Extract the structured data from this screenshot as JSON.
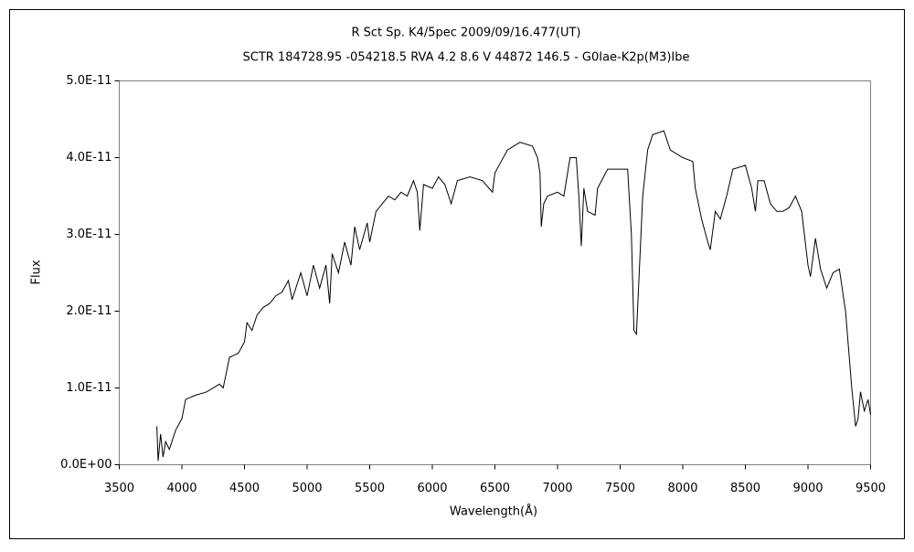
{
  "chart_data": {
    "type": "line",
    "title": "R Sct    Sp. K4/5pec    2009/09/16.477(UT)",
    "subtitle": "SCTR 184728.95 -054218.5 RVA 4.2 8.6 V 44872 146.5 - G0Iae-K2p(M3)Ibe",
    "xlabel": "Wavelength(Å)",
    "ylabel": "Flux",
    "color": "#000000",
    "xlim": [
      3500,
      9500
    ],
    "xticks": [
      3500,
      4000,
      4500,
      5000,
      5500,
      6000,
      6500,
      7000,
      7500,
      8000,
      8500,
      9000,
      9500
    ],
    "ylim": [
      0,
      5e-11
    ],
    "yticks": [
      {
        "value": 0,
        "label": "0.0E+00"
      },
      {
        "value": 1e-11,
        "label": "1.0E-11"
      },
      {
        "value": 2e-11,
        "label": "2.0E-11"
      },
      {
        "value": 3e-11,
        "label": "3.0E-11"
      },
      {
        "value": 4e-11,
        "label": "4.0E-11"
      },
      {
        "value": 5e-11,
        "label": "5.0E-11"
      }
    ],
    "x": [
      3800,
      3810,
      3830,
      3850,
      3870,
      3900,
      3950,
      4000,
      4030,
      4100,
      4200,
      4300,
      4330,
      4380,
      4450,
      4500,
      4520,
      4560,
      4600,
      4650,
      4700,
      4750,
      4800,
      4850,
      4880,
      4950,
      5000,
      5050,
      5100,
      5150,
      5180,
      5200,
      5250,
      5300,
      5350,
      5380,
      5420,
      5480,
      5500,
      5550,
      5600,
      5650,
      5700,
      5750,
      5800,
      5850,
      5880,
      5900,
      5930,
      6000,
      6050,
      6100,
      6150,
      6200,
      6300,
      6400,
      6480,
      6500,
      6550,
      6600,
      6700,
      6800,
      6840,
      6860,
      6870,
      6890,
      6920,
      7000,
      7050,
      7100,
      7150,
      7170,
      7190,
      7210,
      7240,
      7300,
      7320,
      7400,
      7500,
      7560,
      7590,
      7610,
      7630,
      7650,
      7680,
      7720,
      7760,
      7850,
      7900,
      8000,
      8080,
      8100,
      8150,
      8200,
      8220,
      8260,
      8300,
      8350,
      8400,
      8500,
      8550,
      8580,
      8600,
      8650,
      8700,
      8750,
      8800,
      8850,
      8900,
      8950,
      9000,
      9020,
      9060,
      9100,
      9150,
      9200,
      9250,
      9300,
      9350,
      9380,
      9400,
      9420,
      9450,
      9480,
      9500
    ],
    "values": [
      5e-12,
      5e-13,
      4e-12,
      1e-12,
      3e-12,
      2e-12,
      4.5e-12,
      6e-12,
      8.5e-12,
      9e-12,
      9.5e-12,
      1.05e-11,
      1e-11,
      1.4e-11,
      1.45e-11,
      1.6e-11,
      1.85e-11,
      1.75e-11,
      1.95e-11,
      2.05e-11,
      2.1e-11,
      2.2e-11,
      2.25e-11,
      2.4e-11,
      2.15e-11,
      2.5e-11,
      2.2e-11,
      2.6e-11,
      2.3e-11,
      2.6e-11,
      2.1e-11,
      2.75e-11,
      2.5e-11,
      2.9e-11,
      2.6e-11,
      3.1e-11,
      2.8e-11,
      3.15e-11,
      2.9e-11,
      3.3e-11,
      3.4e-11,
      3.5e-11,
      3.45e-11,
      3.55e-11,
      3.5e-11,
      3.7e-11,
      3.55e-11,
      3.05e-11,
      3.65e-11,
      3.6e-11,
      3.75e-11,
      3.65e-11,
      3.4e-11,
      3.7e-11,
      3.75e-11,
      3.7e-11,
      3.55e-11,
      3.8e-11,
      3.95e-11,
      4.1e-11,
      4.2e-11,
      4.15e-11,
      4e-11,
      3.8e-11,
      3.1e-11,
      3.4e-11,
      3.5e-11,
      3.55e-11,
      3.5e-11,
      4e-11,
      4e-11,
      3.5e-11,
      2.85e-11,
      3.6e-11,
      3.3e-11,
      3.25e-11,
      3.6e-11,
      3.85e-11,
      3.85e-11,
      3.85e-11,
      3e-11,
      1.75e-11,
      1.7e-11,
      2.4e-11,
      3.5e-11,
      4.1e-11,
      4.3e-11,
      4.35e-11,
      4.1e-11,
      4e-11,
      3.95e-11,
      3.6e-11,
      3.2e-11,
      2.9e-11,
      2.8e-11,
      3.3e-11,
      3.2e-11,
      3.5e-11,
      3.85e-11,
      3.9e-11,
      3.6e-11,
      3.3e-11,
      3.7e-11,
      3.7e-11,
      3.4e-11,
      3.3e-11,
      3.3e-11,
      3.35e-11,
      3.5e-11,
      3.3e-11,
      2.6e-11,
      2.45e-11,
      2.95e-11,
      2.55e-11,
      2.3e-11,
      2.5e-11,
      2.55e-11,
      2e-11,
      1e-11,
      5e-12,
      6e-12,
      9.5e-12,
      7e-12,
      8.5e-12,
      6.5e-12
    ]
  }
}
